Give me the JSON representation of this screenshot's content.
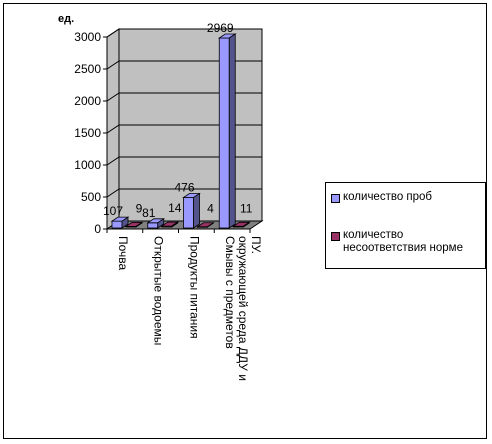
{
  "chart_data": {
    "type": "bar",
    "style": "3d-column",
    "ylabel": "ед.",
    "categories": [
      "Почва",
      "Открытые водоемы",
      "Продукты питания",
      "Смывы с предметов окружающей среда ДДУ и ПУ."
    ],
    "series": [
      {
        "name": "количество проб",
        "values": [
          107,
          81,
          476,
          2969
        ]
      },
      {
        "name": "количество несоответствия норме",
        "values": [
          9,
          14,
          4,
          11
        ]
      }
    ],
    "ylim": [
      0,
      3000
    ],
    "yticks": [
      0,
      500,
      1000,
      1500,
      2000,
      2500,
      3000
    ],
    "grid": true,
    "legend": "right",
    "colors": {
      "series1": "#9999FF",
      "series2": "#993366",
      "walls": "#C0C0C0",
      "floor": "#808080"
    }
  }
}
